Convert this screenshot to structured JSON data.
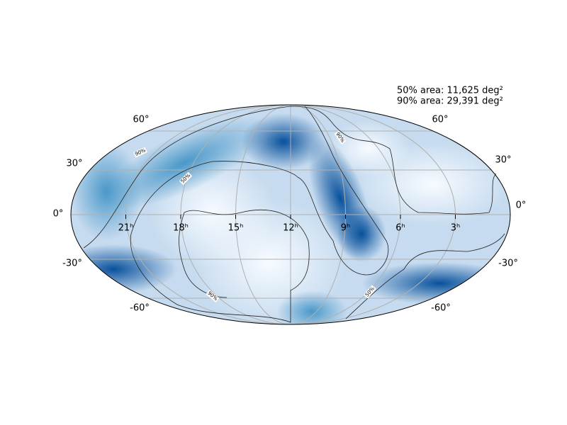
{
  "annotations": [
    "50% area: 11,625 deg²",
    "90% area: 29,391 deg²"
  ],
  "lat_labels_left": [
    "60°",
    "30°",
    "0°",
    "-30°",
    "-60°"
  ],
  "lat_labels_right": [
    "60°",
    "30°",
    "0°",
    "-30°",
    "-60°"
  ],
  "ra_labels": [
    "21ʰ",
    "18ʰ",
    "15ʰ",
    "12ʰ",
    "9ʰ",
    "6ʰ",
    "3ʰ"
  ],
  "contour_labels": [
    "90%",
    "50%",
    "90%",
    "90%",
    "50%"
  ]
}
